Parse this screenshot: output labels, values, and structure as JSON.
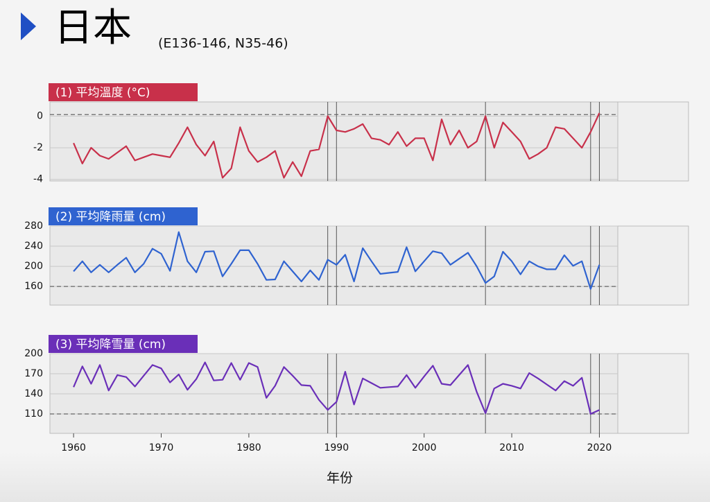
{
  "title": "日本",
  "subtitle": "(E136-146, N35-46)",
  "x_label": "年份",
  "chart_data": [
    {
      "type": "line",
      "title": "(1) 平均溫度 (°C)",
      "color": "#c8304a",
      "x": [
        1960,
        1961,
        1962,
        1963,
        1964,
        1965,
        1966,
        1967,
        1968,
        1969,
        1970,
        1971,
        1972,
        1973,
        1974,
        1975,
        1976,
        1977,
        1978,
        1979,
        1980,
        1981,
        1982,
        1983,
        1984,
        1985,
        1986,
        1987,
        1988,
        1989,
        1990,
        1991,
        1992,
        1993,
        1994,
        1995,
        1996,
        1997,
        1998,
        1999,
        2000,
        2001,
        2002,
        2003,
        2004,
        2005,
        2006,
        2007,
        2008,
        2009,
        2010,
        2011,
        2012,
        2013,
        2014,
        2015,
        2016,
        2017,
        2018,
        2019,
        2020
      ],
      "values": [
        -1.7,
        -3.0,
        -2.0,
        -2.5,
        -2.7,
        -2.3,
        -1.9,
        -2.8,
        -2.6,
        -2.4,
        -2.5,
        -2.6,
        -1.7,
        -0.7,
        -1.8,
        -2.5,
        -1.6,
        -3.9,
        -3.3,
        -0.7,
        -2.2,
        -2.9,
        -2.6,
        -2.2,
        -3.9,
        -2.9,
        -3.8,
        -2.2,
        -2.1,
        0.0,
        -0.9,
        -1.0,
        -0.8,
        -0.5,
        -1.4,
        -1.5,
        -1.8,
        -1.0,
        -1.9,
        -1.4,
        -1.4,
        -2.8,
        -0.2,
        -1.8,
        -0.9,
        -2.0,
        -1.6,
        0.0,
        -2.0,
        -0.4,
        -1.0,
        -1.6,
        -2.7,
        -2.4,
        -2.0,
        -0.7,
        -0.8,
        -1.4,
        -2.0,
        -1.0,
        0.2
      ],
      "xlim": [
        1957.3,
        2022.1
      ],
      "ylim": [
        -4.1,
        0.9
      ],
      "yticks": [
        -4,
        -2,
        0
      ],
      "reference": 0.1,
      "vlines": [
        1989,
        1990,
        2007,
        2019,
        2020
      ]
    },
    {
      "type": "line",
      "title": "(2) 平均降雨量 (cm)",
      "color": "#2f63d0",
      "x": [
        1960,
        1961,
        1962,
        1963,
        1964,
        1965,
        1966,
        1967,
        1968,
        1969,
        1970,
        1971,
        1972,
        1973,
        1974,
        1975,
        1976,
        1977,
        1978,
        1979,
        1980,
        1981,
        1982,
        1983,
        1984,
        1985,
        1986,
        1987,
        1988,
        1989,
        1990,
        1991,
        1992,
        1993,
        1994,
        1995,
        1996,
        1997,
        1998,
        1999,
        2000,
        2001,
        2002,
        2003,
        2004,
        2005,
        2006,
        2007,
        2008,
        2009,
        2010,
        2011,
        2012,
        2013,
        2014,
        2015,
        2016,
        2017,
        2018,
        2019,
        2020
      ],
      "values": [
        190,
        210,
        188,
        203,
        188,
        203,
        217,
        188,
        205,
        235,
        225,
        191,
        268,
        210,
        188,
        229,
        230,
        180,
        205,
        232,
        232,
        205,
        173,
        174,
        210,
        190,
        170,
        192,
        173,
        213,
        203,
        223,
        170,
        236,
        210,
        185,
        187,
        189,
        238,
        190,
        210,
        230,
        226,
        203,
        215,
        227,
        200,
        167,
        180,
        229,
        210,
        184,
        210,
        200,
        194,
        194,
        222,
        201,
        210,
        155,
        203
      ],
      "xlim": [
        1957.3,
        2022.1
      ],
      "ylim": [
        123,
        280
      ],
      "yticks": [
        160,
        200,
        240,
        280
      ],
      "reference": 160,
      "vlines": [
        1989,
        1990,
        2007,
        2019,
        2020
      ]
    },
    {
      "type": "line",
      "title": "(3) 平均降雪量 (cm)",
      "color": "#6a2fb8",
      "x": [
        1960,
        1961,
        1962,
        1963,
        1964,
        1965,
        1966,
        1967,
        1968,
        1969,
        1970,
        1971,
        1972,
        1973,
        1974,
        1975,
        1976,
        1977,
        1978,
        1979,
        1980,
        1981,
        1982,
        1983,
        1984,
        1985,
        1986,
        1987,
        1988,
        1989,
        1990,
        1991,
        1992,
        1993,
        1994,
        1995,
        1996,
        1997,
        1998,
        1999,
        2000,
        2001,
        2002,
        2003,
        2004,
        2005,
        2006,
        2007,
        2008,
        2009,
        2010,
        2011,
        2012,
        2013,
        2014,
        2015,
        2016,
        2017,
        2018,
        2019,
        2020
      ],
      "values": [
        150,
        181,
        155,
        183,
        145,
        168,
        165,
        151,
        167,
        183,
        178,
        157,
        169,
        146,
        162,
        187,
        160,
        161,
        186,
        161,
        186,
        180,
        134,
        152,
        180,
        167,
        153,
        152,
        131,
        116,
        128,
        173,
        124,
        163,
        156,
        149,
        150,
        151,
        168,
        149,
        166,
        182,
        155,
        153,
        168,
        183,
        143,
        111,
        148,
        155,
        152,
        148,
        171,
        163,
        154,
        145,
        159,
        152,
        164,
        110,
        116
      ],
      "xlim": [
        1957.3,
        2022.1
      ],
      "ylim": [
        81,
        200
      ],
      "yticks": [
        110,
        140,
        170,
        200
      ],
      "reference": 110,
      "vlines": [
        1989,
        1990,
        2007,
        2019,
        2020
      ],
      "xticks": [
        1960,
        1970,
        1980,
        1990,
        2000,
        2010,
        2020
      ]
    }
  ]
}
